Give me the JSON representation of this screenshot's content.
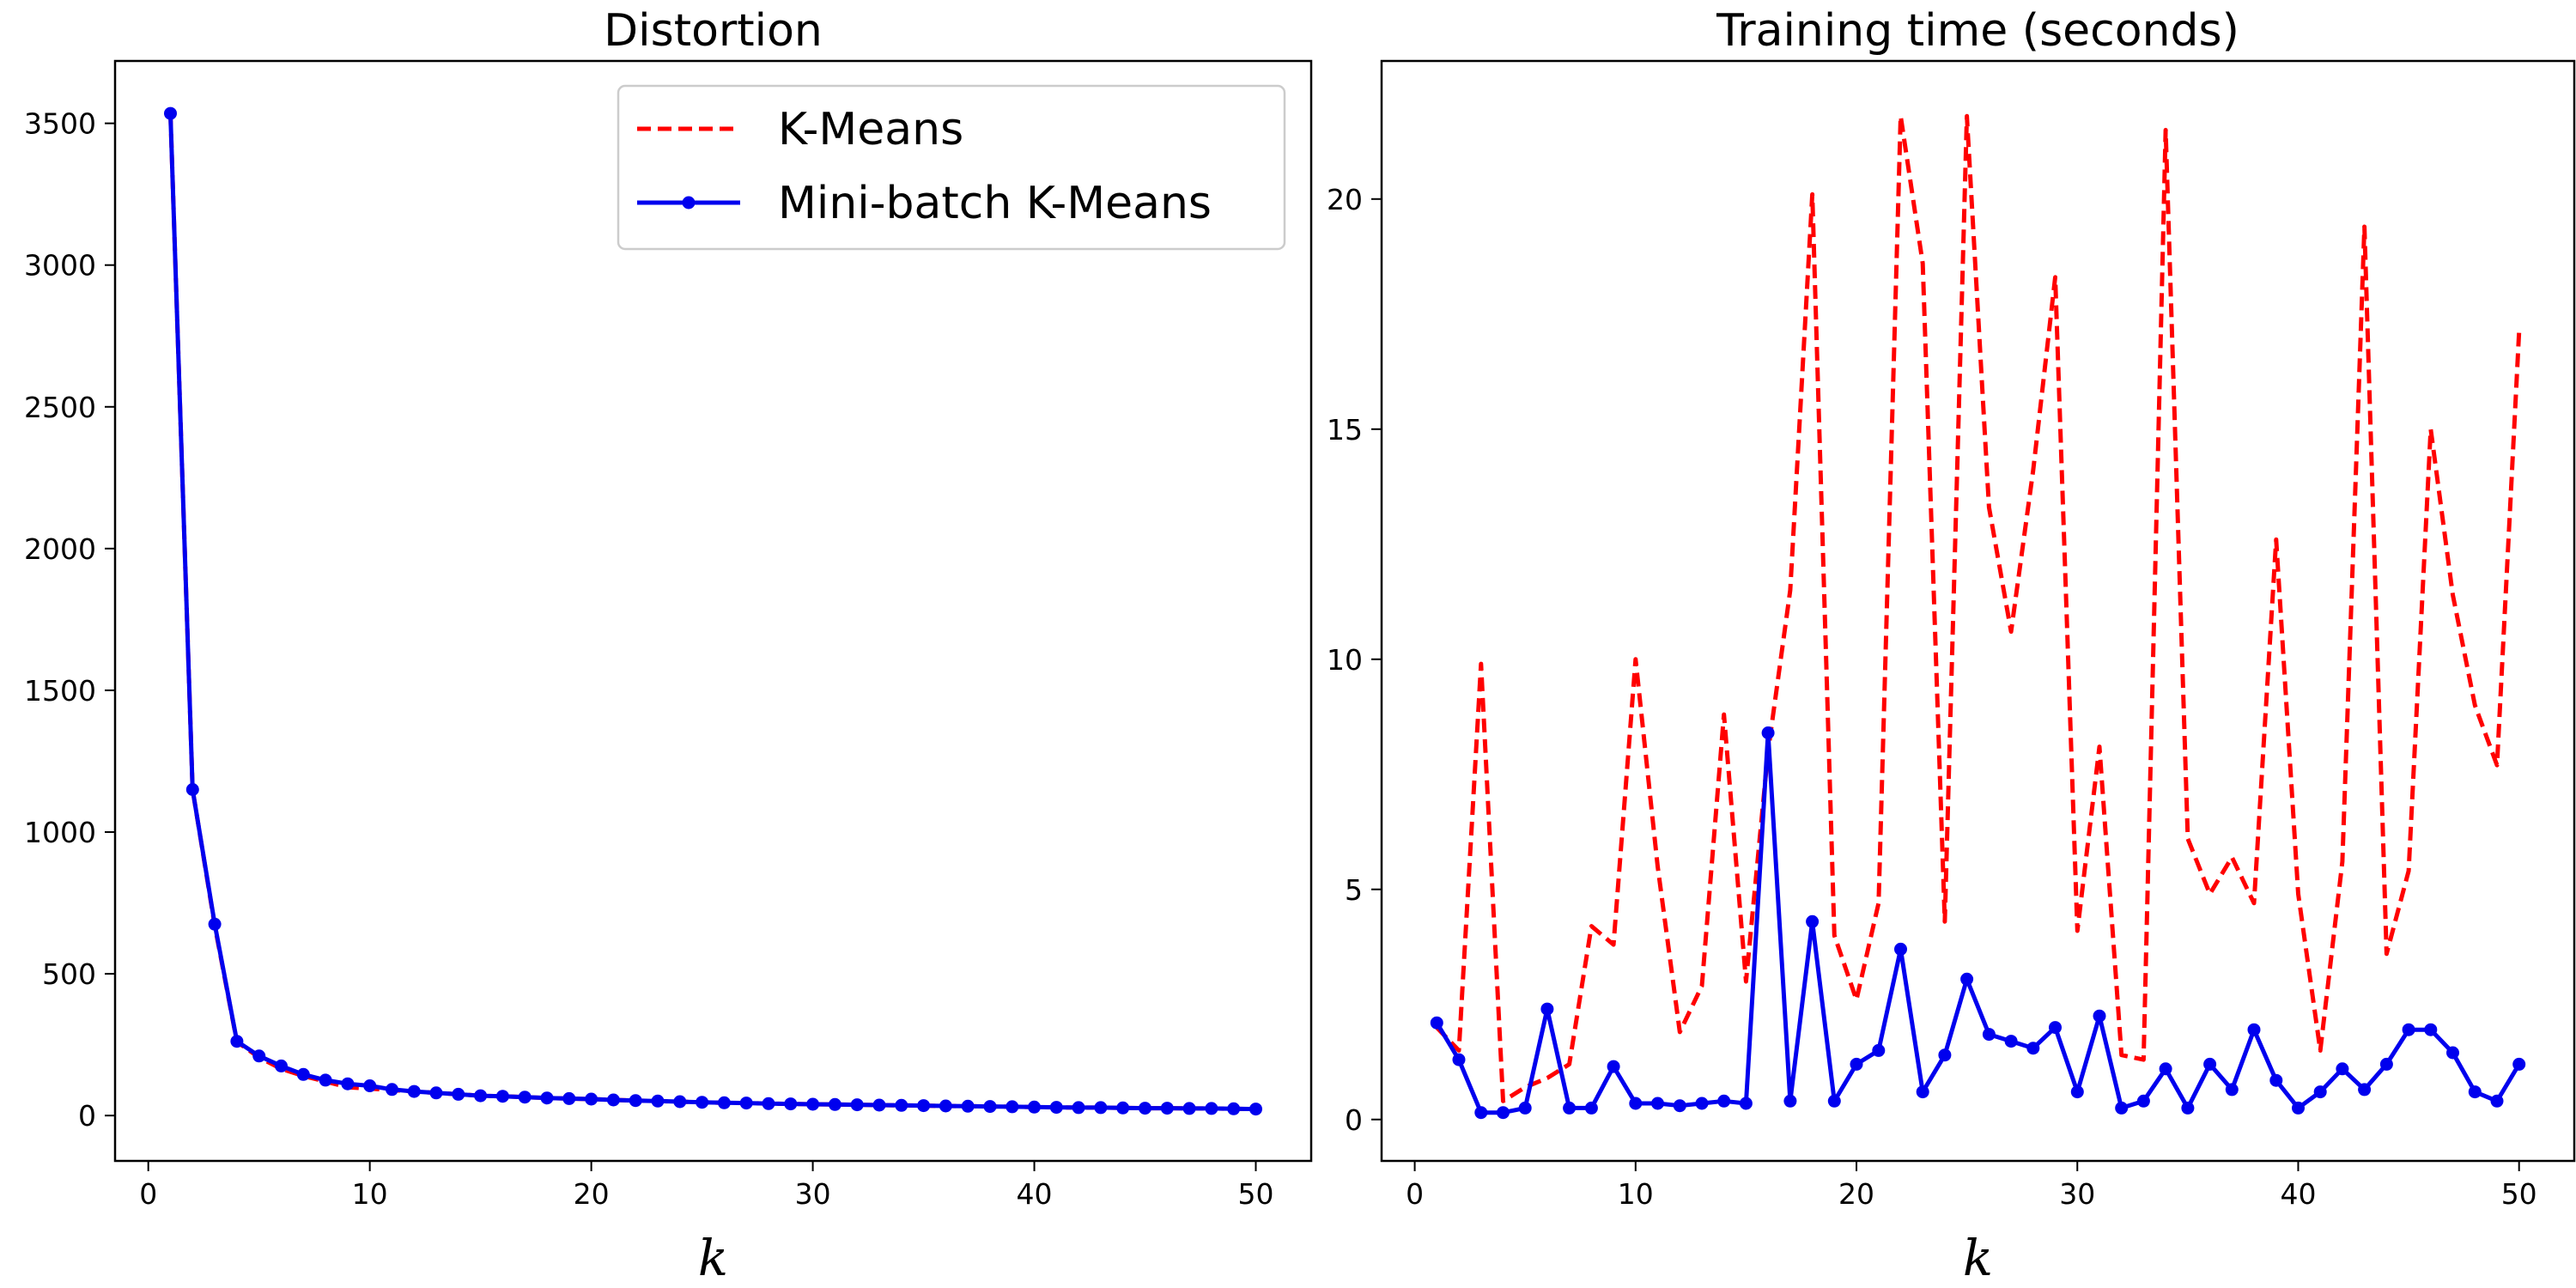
{
  "colors": {
    "kmeans": "#ff0000",
    "minibatch": "#0000ee"
  },
  "legend": {
    "placement": "top-right",
    "entries": [
      {
        "label": "K-Means",
        "color": "#ff0000",
        "style": "dashed"
      },
      {
        "label": "Mini-batch K-Means",
        "color": "#0000ee",
        "style": "solid-with-markers"
      }
    ]
  },
  "chart_data": [
    {
      "type": "line",
      "title": "Distortion",
      "xlabel": "k",
      "ylabel": "",
      "xlim": [
        -1.5,
        52.5
      ],
      "ylim": [
        -160,
        3720
      ],
      "xticks": [
        0,
        10,
        20,
        30,
        40,
        50
      ],
      "yticks": [
        0,
        500,
        1000,
        1500,
        2000,
        2500,
        3000,
        3500
      ],
      "grid": false,
      "legend": "top-right",
      "x": [
        1,
        2,
        3,
        4,
        5,
        6,
        7,
        8,
        9,
        10,
        11,
        12,
        13,
        14,
        15,
        16,
        17,
        18,
        19,
        20,
        21,
        22,
        23,
        24,
        25,
        26,
        27,
        28,
        29,
        30,
        31,
        32,
        33,
        34,
        35,
        36,
        37,
        38,
        39,
        40,
        41,
        42,
        43,
        44,
        45,
        46,
        47,
        48,
        49,
        50
      ],
      "series": [
        {
          "name": "K-Means",
          "values": [
            3535,
            1150,
            670,
            260,
            205,
            165,
            140,
            120,
            100,
            95,
            90,
            85,
            80,
            75,
            70,
            68,
            65,
            62,
            60,
            58,
            55,
            53,
            51,
            49,
            47,
            45,
            44,
            42,
            41,
            40,
            39,
            38,
            37,
            36,
            35,
            34,
            33,
            32,
            31,
            30,
            29,
            28,
            28,
            27,
            26,
            26,
            25,
            25,
            24,
            23
          ]
        },
        {
          "name": "Mini-batch K-Means",
          "values": [
            3535,
            1150,
            675,
            262,
            210,
            175,
            145,
            125,
            112,
            105,
            92,
            85,
            80,
            75,
            70,
            68,
            65,
            62,
            60,
            58,
            55,
            53,
            51,
            49,
            47,
            45,
            44,
            42,
            41,
            40,
            39,
            38,
            37,
            36,
            35,
            34,
            33,
            32,
            31,
            30,
            29,
            28,
            28,
            27,
            26,
            26,
            25,
            25,
            24,
            23
          ]
        }
      ]
    },
    {
      "type": "line",
      "title": "Training time (seconds)",
      "xlabel": "k",
      "ylabel": "",
      "xlim": [
        -1.5,
        52.5
      ],
      "ylim": [
        -0.9,
        23.0
      ],
      "xticks": [
        0,
        10,
        20,
        30,
        40,
        50
      ],
      "yticks": [
        0,
        5,
        10,
        15,
        20
      ],
      "grid": false,
      "legend": "",
      "x": [
        1,
        2,
        3,
        4,
        5,
        6,
        7,
        8,
        9,
        10,
        11,
        12,
        13,
        14,
        15,
        16,
        17,
        18,
        19,
        20,
        21,
        22,
        23,
        24,
        25,
        26,
        27,
        28,
        29,
        30,
        31,
        32,
        33,
        34,
        35,
        36,
        37,
        38,
        39,
        40,
        41,
        42,
        43,
        44,
        45,
        46,
        47,
        48,
        49,
        50
      ],
      "series": [
        {
          "name": "K-Means",
          "values": [
            2.0,
            1.5,
            9.9,
            0.4,
            0.7,
            0.9,
            1.2,
            4.2,
            3.8,
            10.0,
            5.5,
            1.9,
            2.9,
            8.8,
            3.0,
            8.0,
            11.5,
            20.1,
            4.0,
            2.6,
            4.7,
            21.8,
            18.6,
            4.3,
            21.8,
            13.3,
            10.6,
            14.1,
            18.3,
            4.1,
            8.1,
            1.4,
            1.3,
            21.5,
            6.1,
            4.9,
            5.7,
            4.7,
            12.6,
            4.9,
            1.5,
            5.6,
            19.4,
            3.6,
            5.4,
            15.0,
            11.4,
            9.0,
            7.7,
            17.1
          ]
        },
        {
          "name": "Mini-batch K-Means",
          "values": [
            2.1,
            1.3,
            0.15,
            0.15,
            0.25,
            2.4,
            0.25,
            0.25,
            1.15,
            0.35,
            0.35,
            0.3,
            0.35,
            0.4,
            0.35,
            8.4,
            0.4,
            4.3,
            0.4,
            1.2,
            1.5,
            3.7,
            0.6,
            1.4,
            3.05,
            1.85,
            1.7,
            1.55,
            2.0,
            0.6,
            2.25,
            0.25,
            0.4,
            1.1,
            0.25,
            1.2,
            0.65,
            1.95,
            0.85,
            0.25,
            0.6,
            1.1,
            0.65,
            1.2,
            1.95,
            1.95,
            1.45,
            0.6,
            0.4,
            1.2
          ]
        }
      ]
    }
  ]
}
